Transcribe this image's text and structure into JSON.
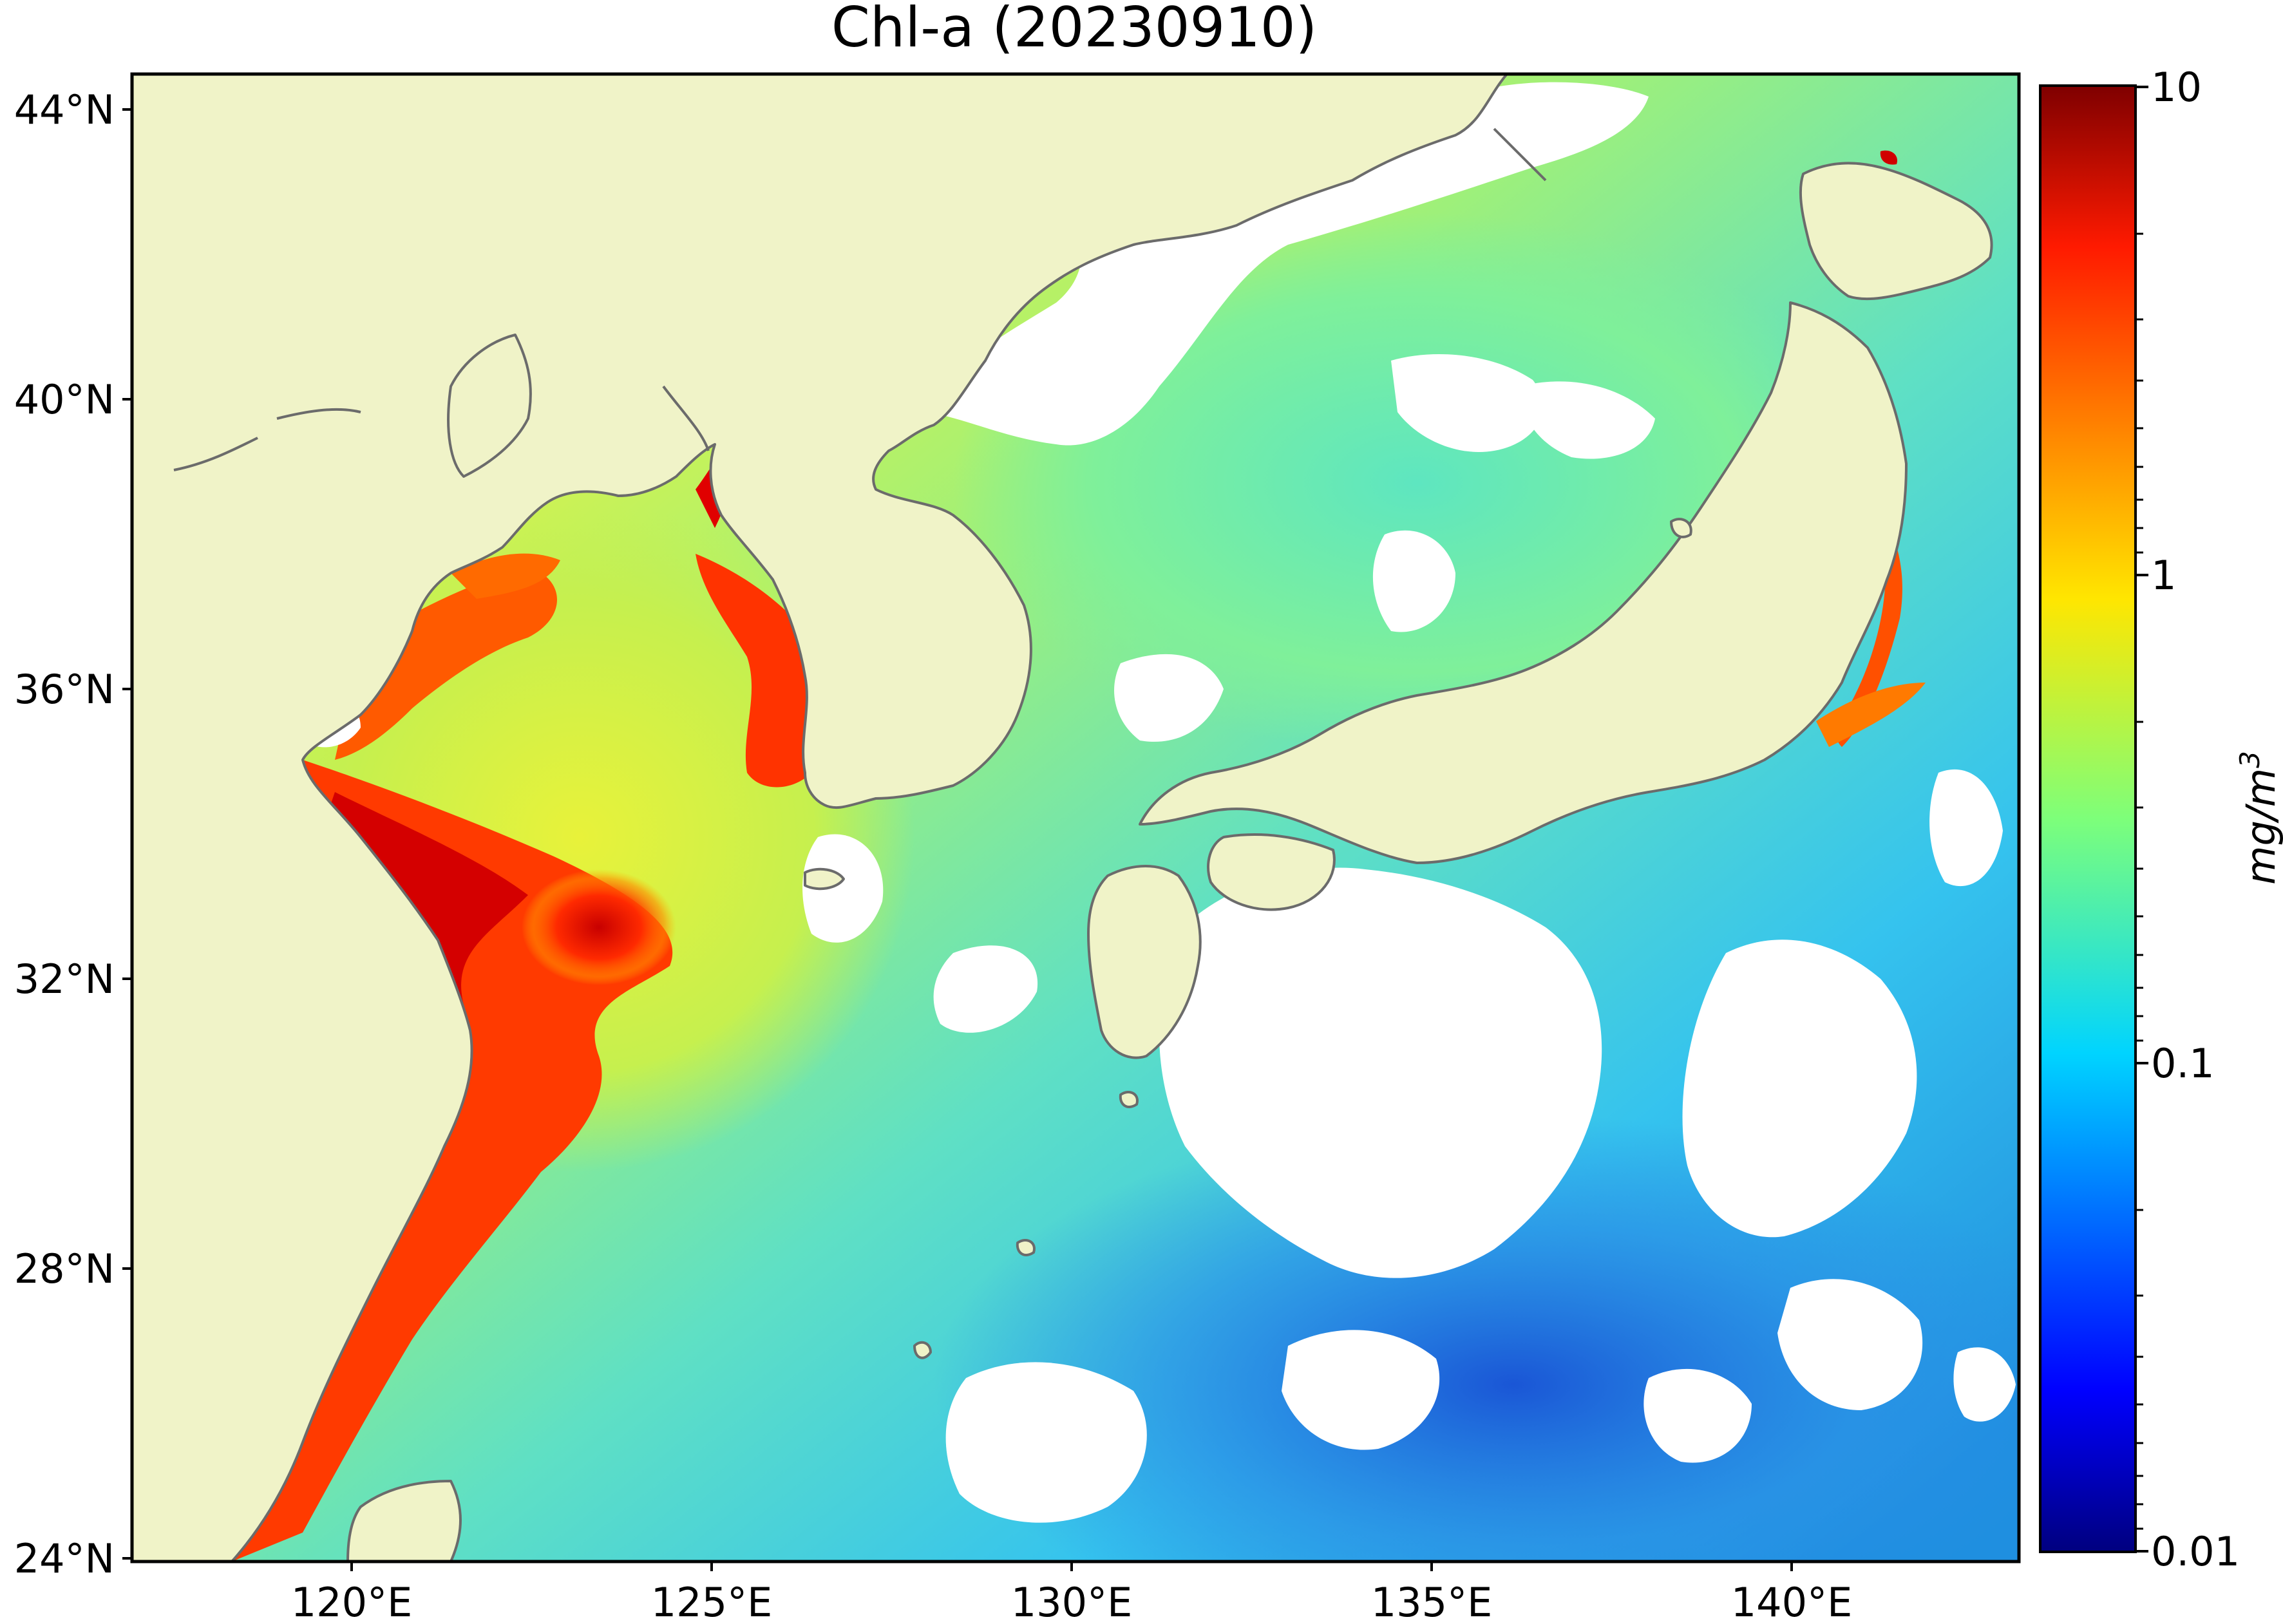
{
  "title": "Chl-a (20230910)",
  "map": {
    "lon_ticks": [
      "120°E",
      "125°E",
      "130°E",
      "135°E",
      "140°E"
    ],
    "lat_ticks": [
      "44°N",
      "40°N",
      "36°N",
      "32°N",
      "28°N",
      "24°N"
    ],
    "land_color": "#f0f3c8",
    "missing_color": "#ffffff",
    "coast_color": "#6b6b6b"
  },
  "colorbar": {
    "colormap": "jet",
    "scale": "log",
    "range": [
      0.01,
      10
    ],
    "tick_labels": [
      "10",
      "1",
      "0.1",
      "0.01"
    ],
    "unit": "mg/m",
    "unit_exponent": "3"
  }
}
